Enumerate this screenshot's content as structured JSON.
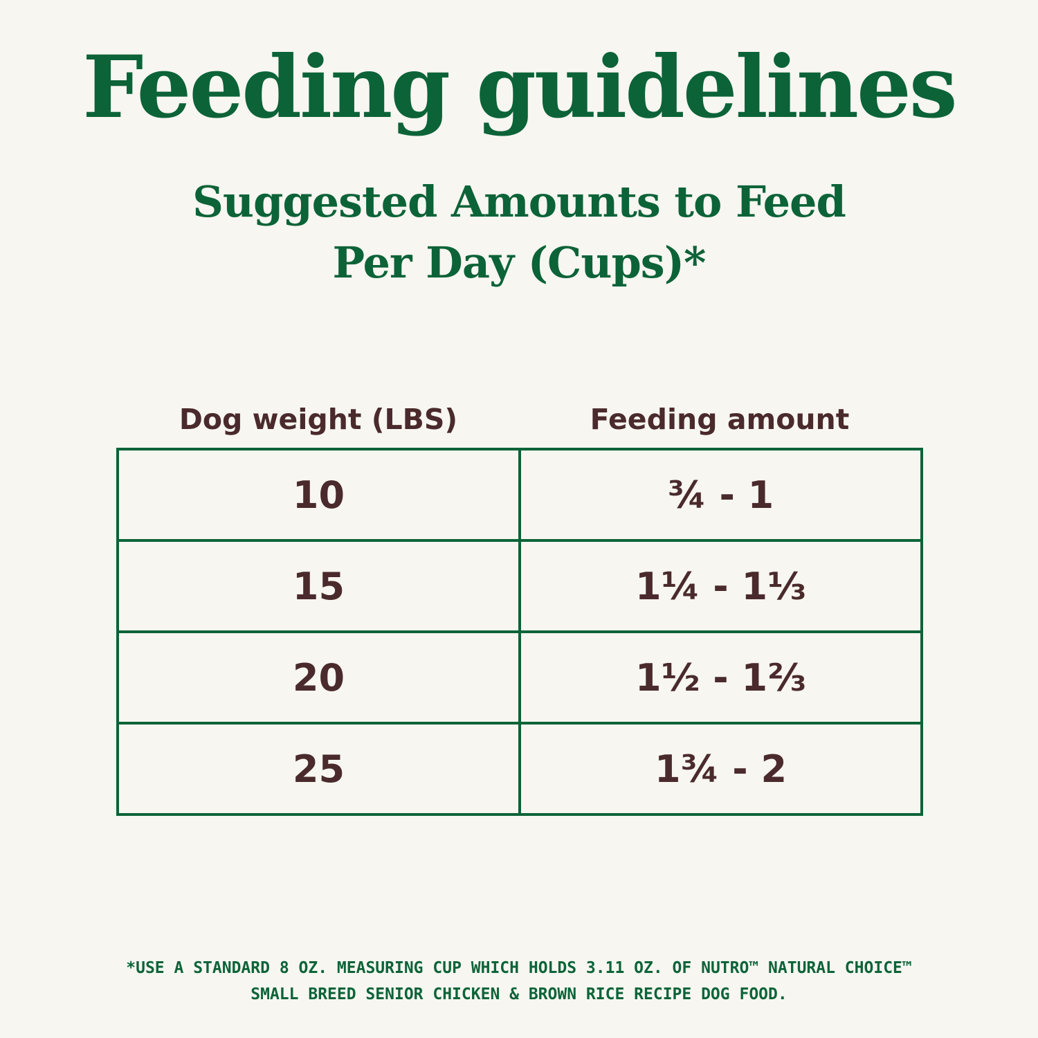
{
  "title": "Feeding guidelines",
  "subtitle": {
    "line1": "Suggested Amounts to Feed",
    "line2": "Per Day (Cups)*"
  },
  "table": {
    "headers": [
      "Dog weight (LBS)",
      "Feeding amount"
    ],
    "rows": [
      {
        "weight": "10",
        "amount": "¾ - 1"
      },
      {
        "weight": "15",
        "amount": "1¼ - 1⅓"
      },
      {
        "weight": "20",
        "amount": "1½ - 1⅔"
      },
      {
        "weight": "25",
        "amount": "1¾ - 2"
      }
    ]
  },
  "footnote": {
    "line1": "*USE A STANDARD 8 OZ. MEASURING CUP WHICH HOLDS 3.11 OZ. OF NUTRO™ NATURAL CHOICE™",
    "line2": "SMALL BREED SENIOR CHICKEN & BROWN RICE RECIPE DOG FOOD."
  },
  "colors": {
    "green": "#0c6338",
    "brown": "#4a2a2c",
    "background": "#f7f6f1"
  }
}
